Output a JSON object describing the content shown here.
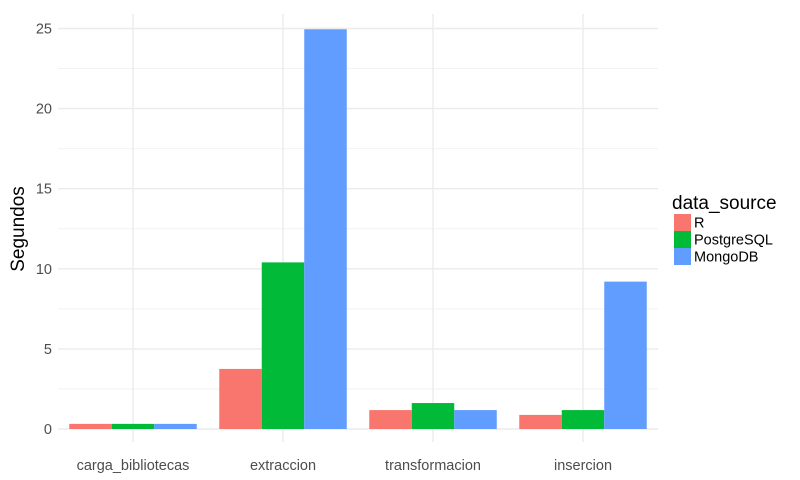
{
  "chart_data": {
    "type": "bar",
    "title": "",
    "xlabel": "",
    "ylabel": "Segundos",
    "ylim": [
      0,
      26.2
    ],
    "yticks": [
      0,
      5,
      10,
      15,
      20,
      25
    ],
    "grid": true,
    "legend_position": "right",
    "legend_title": "data_source",
    "categories": [
      "carga_bibliotecas",
      "extraccion",
      "transformacion",
      "insercion"
    ],
    "series": [
      {
        "name": "R",
        "color": "#F8766D",
        "values": [
          0.32,
          3.75,
          1.18,
          0.88
        ]
      },
      {
        "name": "PostgreSQL",
        "color": "#00BA38",
        "values": [
          0.32,
          10.4,
          1.62,
          1.18
        ]
      },
      {
        "name": "MongoDB",
        "color": "#619CFF",
        "values": [
          0.32,
          24.95,
          1.18,
          9.2
        ]
      }
    ]
  }
}
